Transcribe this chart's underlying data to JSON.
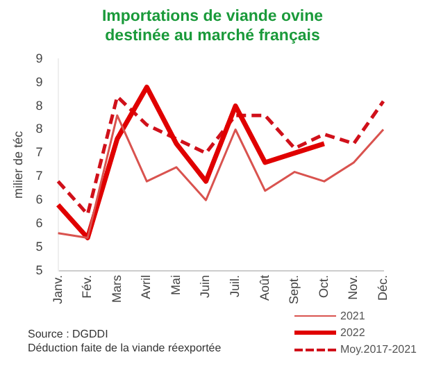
{
  "chart_data": {
    "type": "line",
    "title": "Importations de viande ovine destinée au marché français",
    "ylabel": "milier de téc",
    "categories": [
      "Janv.",
      "Fév.",
      "Mars",
      "Avril",
      "Mai",
      "Juin",
      "Juil.",
      "Août",
      "Sept.",
      "Oct.",
      "Nov.",
      "Déc."
    ],
    "series": [
      {
        "name": "2021",
        "color": "#d9534f",
        "line_style": "solid",
        "values": [
          5.3,
          5.2,
          7.8,
          6.4,
          6.7,
          6.0,
          7.5,
          6.2,
          6.6,
          6.4,
          6.8,
          7.5
        ]
      },
      {
        "name": "2022",
        "color": "#e00000",
        "line_style": "solid",
        "values": [
          5.9,
          5.2,
          7.3,
          8.4,
          7.2,
          6.4,
          8.0,
          6.8,
          7.0,
          7.2,
          null,
          null
        ]
      },
      {
        "name": "Moy.2017-2021",
        "color": "#d0101a",
        "line_style": "dashed",
        "values": [
          6.4,
          5.7,
          8.2,
          7.6,
          7.3,
          7.0,
          7.8,
          7.8,
          7.1,
          7.4,
          7.2,
          8.1
        ]
      }
    ],
    "ylim": [
      4.5,
      9
    ],
    "yticks": [
      {
        "value": 4.5,
        "label": "5"
      },
      {
        "value": 5,
        "label": "5"
      },
      {
        "value": 5.5,
        "label": "6"
      },
      {
        "value": 6,
        "label": "6"
      },
      {
        "value": 6.5,
        "label": "7"
      },
      {
        "value": 7,
        "label": "7"
      },
      {
        "value": 7.5,
        "label": "8"
      },
      {
        "value": 8,
        "label": "8"
      },
      {
        "value": 8.5,
        "label": "9"
      },
      {
        "value": 9,
        "label": "9"
      }
    ],
    "grid": false,
    "legend": "bottom right",
    "marker": "none",
    "annotations": [
      "Source : DGDDI",
      "Déduction faite de la viande réexportée"
    ]
  }
}
